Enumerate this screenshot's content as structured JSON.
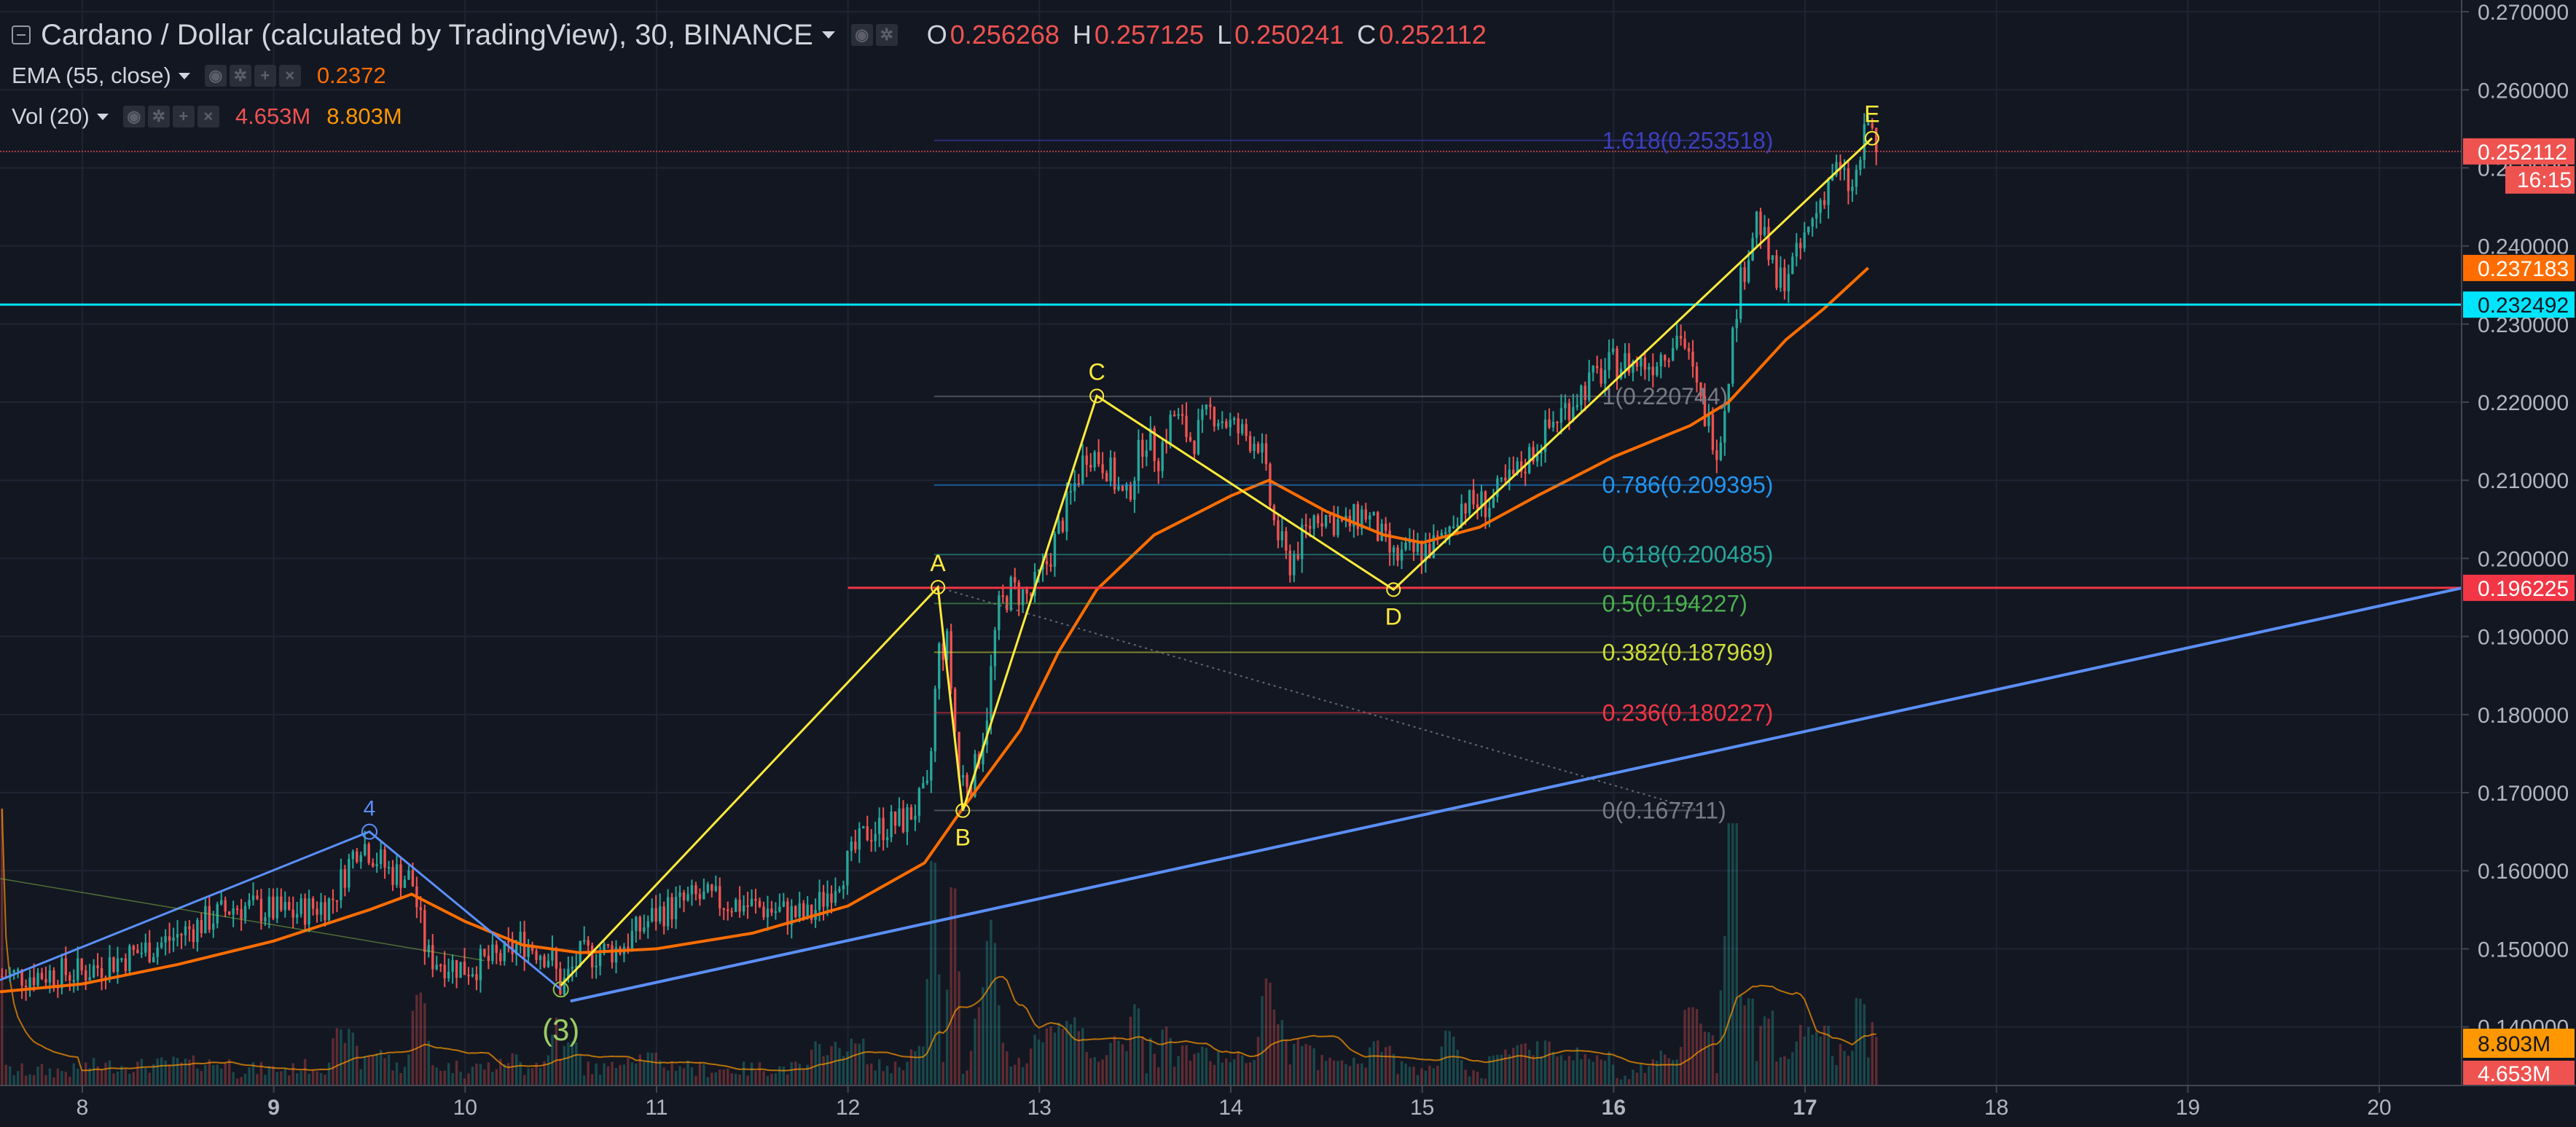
{
  "legend": {
    "symbol_title": "Cardano / Dollar (calculated by TradingView), 30, BINANCE",
    "ohlc": {
      "o_label": "O",
      "o": "0.256268",
      "h_label": "H",
      "h": "0.257125",
      "l_label": "L",
      "l": "0.250241",
      "c_label": "C",
      "c": "0.252112"
    },
    "ema": {
      "title": "EMA (55, close)",
      "value": "0.2372"
    },
    "vol": {
      "title": "Vol (20)",
      "value_a": "4.653M",
      "value_b": "8.803M"
    }
  },
  "chart_data": {
    "type": "candlestick",
    "y_axis": {
      "ticks": [
        "0.270000",
        "0.260000",
        "0.250000",
        "0.240000",
        "0.230000",
        "0.220000",
        "0.210000",
        "0.200000",
        "0.190000",
        "0.180000",
        "0.170000",
        "0.160000",
        "0.150000",
        "0.140000"
      ],
      "range": [
        0.1325,
        0.2715
      ]
    },
    "x_axis": {
      "ticks": [
        "8",
        "9",
        "10",
        "11",
        "12",
        "13",
        "14",
        "15",
        "16",
        "17",
        "18",
        "19",
        "20"
      ],
      "bold": [
        "9",
        "16",
        "17"
      ],
      "range_days": [
        7.57,
        20.43
      ]
    },
    "grid": true,
    "price_path": [
      [
        7.57,
        0.1465
      ],
      [
        8.0,
        0.147
      ],
      [
        8.4,
        0.1505
      ],
      [
        8.8,
        0.1555
      ],
      [
        9.1,
        0.1545
      ],
      [
        9.3,
        0.156
      ],
      [
        9.45,
        0.164
      ],
      [
        9.6,
        0.16
      ],
      [
        9.72,
        0.159
      ],
      [
        9.8,
        0.149
      ],
      [
        10.0,
        0.1475
      ],
      [
        10.2,
        0.149
      ],
      [
        10.3,
        0.151
      ],
      [
        10.45,
        0.149
      ],
      [
        10.5,
        0.145
      ],
      [
        10.6,
        0.149
      ],
      [
        10.8,
        0.15
      ],
      [
        11.0,
        0.1545
      ],
      [
        11.2,
        0.1565
      ],
      [
        11.5,
        0.1555
      ],
      [
        11.8,
        0.154
      ],
      [
        12.0,
        0.161
      ],
      [
        12.1,
        0.165
      ],
      [
        12.3,
        0.1665
      ],
      [
        12.42,
        0.17
      ],
      [
        12.47,
        0.188
      ],
      [
        12.52,
        0.189
      ],
      [
        12.58,
        0.172
      ],
      [
        12.65,
        0.1715
      ],
      [
        12.72,
        0.179
      ],
      [
        12.78,
        0.193
      ],
      [
        12.85,
        0.196
      ],
      [
        12.95,
        0.195
      ],
      [
        13.05,
        0.2
      ],
      [
        13.15,
        0.207
      ],
      [
        13.25,
        0.214
      ],
      [
        13.35,
        0.212
      ],
      [
        13.45,
        0.207
      ],
      [
        13.55,
        0.216
      ],
      [
        13.62,
        0.213
      ],
      [
        13.7,
        0.2185
      ],
      [
        13.8,
        0.215
      ],
      [
        13.9,
        0.219
      ],
      [
        14.05,
        0.216
      ],
      [
        14.15,
        0.215
      ],
      [
        14.22,
        0.205
      ],
      [
        14.3,
        0.199
      ],
      [
        14.45,
        0.206
      ],
      [
        14.6,
        0.204
      ],
      [
        14.7,
        0.206
      ],
      [
        14.85,
        0.2
      ],
      [
        15.0,
        0.201
      ],
      [
        15.1,
        0.202
      ],
      [
        15.2,
        0.207
      ],
      [
        15.35,
        0.207
      ],
      [
        15.5,
        0.211
      ],
      [
        15.7,
        0.218
      ],
      [
        15.85,
        0.222
      ],
      [
        16.0,
        0.225
      ],
      [
        16.2,
        0.225
      ],
      [
        16.35,
        0.229
      ],
      [
        16.45,
        0.22
      ],
      [
        16.55,
        0.214
      ],
      [
        16.65,
        0.234
      ],
      [
        16.75,
        0.244
      ],
      [
        16.85,
        0.235
      ],
      [
        16.95,
        0.238
      ],
      [
        17.05,
        0.244
      ],
      [
        17.15,
        0.25
      ],
      [
        17.25,
        0.247
      ],
      [
        17.33,
        0.256
      ],
      [
        17.38,
        0.2521
      ]
    ],
    "ema_path": [
      [
        7.57,
        0.1445
      ],
      [
        8.0,
        0.1455
      ],
      [
        8.5,
        0.148
      ],
      [
        9.0,
        0.151
      ],
      [
        9.5,
        0.155
      ],
      [
        9.72,
        0.157
      ],
      [
        10.0,
        0.1535
      ],
      [
        10.3,
        0.1505
      ],
      [
        10.6,
        0.1495
      ],
      [
        11.0,
        0.15
      ],
      [
        11.5,
        0.152
      ],
      [
        12.0,
        0.1555
      ],
      [
        12.4,
        0.161
      ],
      [
        12.6,
        0.168
      ],
      [
        12.9,
        0.178
      ],
      [
        13.1,
        0.188
      ],
      [
        13.3,
        0.196
      ],
      [
        13.6,
        0.203
      ],
      [
        14.0,
        0.208
      ],
      [
        14.2,
        0.21
      ],
      [
        14.5,
        0.206
      ],
      [
        14.8,
        0.203
      ],
      [
        15.0,
        0.202
      ],
      [
        15.3,
        0.204
      ],
      [
        15.6,
        0.208
      ],
      [
        16.0,
        0.213
      ],
      [
        16.4,
        0.217
      ],
      [
        16.6,
        0.22
      ],
      [
        16.9,
        0.228
      ],
      [
        17.1,
        0.232
      ],
      [
        17.33,
        0.2372
      ]
    ],
    "volume": {
      "label_a": "8.803M",
      "label_b": "4.653M"
    },
    "price_labels": [
      {
        "value": 0.252112,
        "text": "0.252112",
        "color": "#ef5350"
      },
      {
        "value": 0.237183,
        "text": "0.237183",
        "color": "#ff6d00"
      },
      {
        "value": 0.232492,
        "text": "0.232492",
        "color": "#00e5ff"
      },
      {
        "value": 0.196225,
        "text": "0.196225",
        "color": "#f23645"
      }
    ],
    "countdown": "16:15",
    "hlines": [
      {
        "value": 0.252112,
        "color": "#ef5350",
        "dashed": true
      },
      {
        "value": 0.232492,
        "color": "#00e5ff"
      },
      {
        "value": 0.196225,
        "color": "#f23645",
        "from_day": 12.0
      }
    ],
    "fib_levels": [
      {
        "ratio": "1.618",
        "value": 0.253518,
        "text": "1.618(0.253518)",
        "color": "#3f3fbf"
      },
      {
        "ratio": "1",
        "value": 0.220744,
        "text": "1(0.220744)",
        "color": "#787b86"
      },
      {
        "ratio": "0.786",
        "value": 0.209395,
        "text": "0.786(0.209395)",
        "color": "#2196f3"
      },
      {
        "ratio": "0.618",
        "value": 0.200485,
        "text": "0.618(0.200485)",
        "color": "#26a69a"
      },
      {
        "ratio": "0.5",
        "value": 0.194227,
        "text": "0.5(0.194227)",
        "color": "#4caf50"
      },
      {
        "ratio": "0.382",
        "value": 0.187969,
        "text": "0.382(0.187969)",
        "color": "#cddc39"
      },
      {
        "ratio": "0.236",
        "value": 0.180227,
        "text": "0.236(0.180227)",
        "color": "#f23645"
      },
      {
        "ratio": "0",
        "value": 0.167711,
        "text": "0(0.167711)",
        "color": "#787b86"
      }
    ],
    "fib_x_range": [
      12.45,
      16.45
    ],
    "pattern_points": [
      {
        "label": "A",
        "day": 12.47,
        "value": 0.1963
      },
      {
        "label": "B",
        "day": 12.6,
        "value": 0.1677
      },
      {
        "label": "C",
        "day": 13.3,
        "value": 0.2208
      },
      {
        "label": "D",
        "day": 14.85,
        "value": 0.196
      },
      {
        "label": "E",
        "day": 17.35,
        "value": 0.2538
      }
    ],
    "pattern_start": {
      "day": 10.5,
      "value": 0.1453
    },
    "wave_points": [
      {
        "label": "4",
        "day": 9.5,
        "value": 0.165
      },
      {
        "label": "(3)",
        "day": 10.5,
        "value": 0.1448
      }
    ],
    "wave_start": {
      "day": 7.57,
      "value": 0.146
    },
    "trendline": {
      "from": {
        "day": 10.55,
        "value": 0.1433
      },
      "to": {
        "day": 20.43,
        "value": 0.1962
      }
    }
  }
}
